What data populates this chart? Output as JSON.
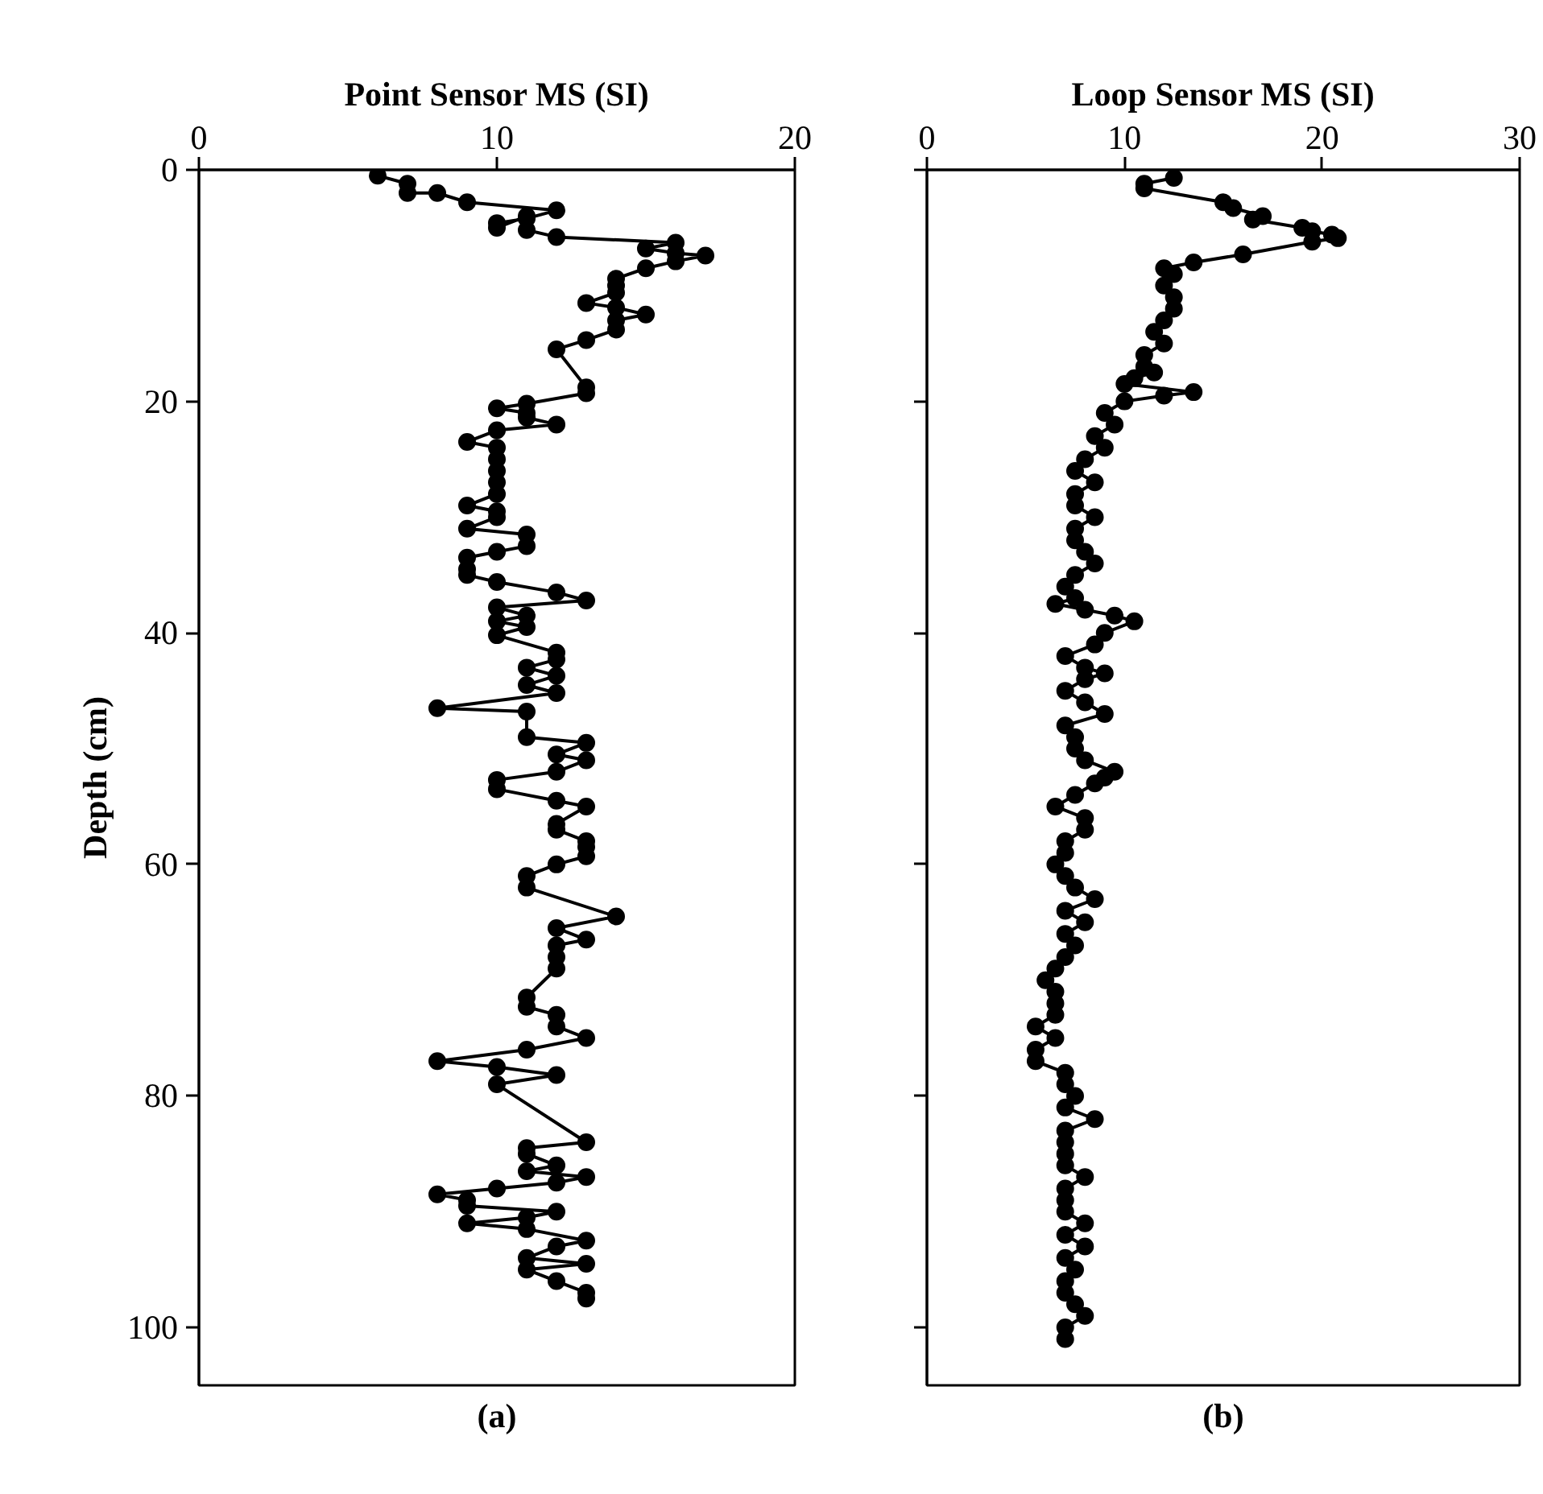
{
  "chart_data": [
    {
      "type": "line",
      "xlabel": "Point Sensor MS (SI)",
      "ylabel": "Depth (cm)",
      "annotations": [
        "(a)"
      ],
      "orientation": "horizontal",
      "marker": "circle",
      "line_style": "solid",
      "xlim": [
        0,
        20
      ],
      "xticks": [
        0,
        10,
        20
      ],
      "ylim": [
        105,
        0
      ],
      "yticks": [
        0,
        20,
        40,
        60,
        80,
        100
      ],
      "series": [
        {
          "color": "#000000",
          "values": [
            6,
            7,
            7,
            8,
            9,
            12,
            11,
            10,
            10,
            11,
            11,
            12,
            16,
            15,
            16,
            17,
            16,
            15,
            14,
            14,
            14,
            13,
            14,
            15,
            14,
            14,
            13,
            12,
            13,
            13,
            11,
            10,
            11,
            11,
            12,
            10,
            9,
            10,
            10,
            10,
            10,
            10,
            9,
            10,
            10,
            9,
            11,
            11,
            10,
            9,
            9,
            9,
            10,
            12,
            13,
            10,
            11,
            10,
            11,
            10,
            12,
            12,
            11,
            12,
            11,
            12,
            8,
            11,
            11,
            13,
            12,
            13,
            12,
            10,
            10,
            12,
            13,
            12,
            12,
            13,
            13,
            13,
            12,
            11,
            11,
            14,
            12,
            13,
            12,
            12,
            12,
            11,
            11,
            12,
            12,
            13,
            11,
            8,
            10,
            12,
            10,
            13,
            11,
            11,
            12,
            11,
            13,
            12,
            10,
            8,
            9,
            9,
            12,
            11,
            9,
            11,
            13,
            12,
            11,
            13,
            11,
            12,
            13,
            13
          ],
          "x": [
            0.5,
            1.2,
            2.0,
            2.0,
            2.8,
            3.5,
            4.2,
            4.6,
            5.0,
            4.0,
            5.2,
            5.8,
            6.3,
            6.8,
            7.2,
            7.4,
            7.9,
            8.5,
            9.4,
            10.0,
            10.6,
            11.5,
            11.9,
            12.5,
            13.0,
            13.8,
            14.7,
            15.5,
            18.8,
            19.3,
            20.2,
            20.6,
            21.0,
            21.4,
            22.0,
            22.5,
            23.5,
            24.0,
            25.0,
            26.0,
            27.0,
            28.0,
            29.0,
            29.5,
            30.0,
            31.0,
            31.5,
            32.5,
            33.0,
            33.5,
            34.5,
            35.0,
            35.6,
            36.5,
            37.2,
            37.8,
            38.5,
            39.0,
            39.5,
            40.2,
            41.7,
            42.3,
            43.0,
            43.7,
            44.5,
            45.2,
            46.5,
            46.8,
            49.0,
            49.5,
            50.5,
            51.0,
            52.0,
            52.7,
            53.5,
            54.5,
            55.0,
            56.5,
            57.0,
            58.0,
            58.5,
            59.3,
            60.0,
            61.0,
            62.0,
            64.5,
            65.5,
            66.5,
            67.0,
            68.0,
            69.0,
            71.5,
            72.3,
            73.0,
            74.0,
            75.0,
            76.0,
            77.0,
            77.5,
            78.2,
            79.0,
            84.0,
            84.5,
            85.0,
            86.0,
            86.5,
            87.0,
            87.5,
            88.0,
            88.5,
            89.0,
            89.5,
            90.0,
            90.5,
            91.0,
            91.5,
            92.5,
            93.0,
            94.0,
            94.5,
            95.0,
            96.0,
            97.0,
            97.5
          ]
        }
      ]
    },
    {
      "type": "line",
      "xlabel": "Loop Sensor MS (SI)",
      "annotations": [
        "(b)"
      ],
      "orientation": "horizontal",
      "marker": "circle",
      "line_style": "solid",
      "tick_labels": "x",
      "xlim": [
        0,
        30
      ],
      "xticks": [
        0,
        10,
        20,
        30
      ],
      "ylim": [
        105,
        0
      ],
      "yticks": [
        0,
        20,
        40,
        60,
        80,
        100
      ],
      "series": [
        {
          "color": "#000000",
          "values": [
            12.5,
            11,
            11,
            15,
            15.5,
            17,
            16.5,
            19,
            19.5,
            20.5,
            20.8,
            19.5,
            16,
            13.5,
            12,
            12.5,
            12,
            12.5,
            12.5,
            12,
            11.5,
            12,
            11,
            11,
            11.5,
            10.5,
            10,
            13.5,
            12,
            10,
            9,
            9.5,
            8.5,
            9,
            8,
            7.5,
            8.5,
            7.5,
            7.5,
            8.5,
            7.5,
            7.5,
            8,
            8.5,
            7.5,
            7,
            7.5,
            6.5,
            8,
            9.5,
            10.5,
            9,
            8.5,
            7,
            8,
            9,
            8,
            7,
            8,
            9,
            7,
            7.5,
            7.5,
            8,
            9.5,
            9,
            8.5,
            7.5,
            6.5,
            8,
            8,
            7,
            7,
            6.5,
            7,
            7.5,
            8.5,
            7,
            8,
            7,
            7.5,
            7,
            6.5,
            6,
            6.5,
            6.5,
            6.5,
            5.5,
            6.5,
            5.5,
            5.5,
            7,
            7,
            7.5,
            7,
            8.5,
            7,
            7,
            7,
            7,
            8,
            7,
            7,
            7,
            8,
            7,
            8,
            7,
            7.5,
            7,
            7,
            7.5,
            8,
            7,
            7
          ],
          "x": [
            0.7,
            1.2,
            1.6,
            2.8,
            3.3,
            4.0,
            4.3,
            5.0,
            5.3,
            5.6,
            5.9,
            6.2,
            7.3,
            8.0,
            8.5,
            9.0,
            10.0,
            11.0,
            12.0,
            13.0,
            14.0,
            15.0,
            16.0,
            17.0,
            17.5,
            18.0,
            18.5,
            19.2,
            19.5,
            20.0,
            21.0,
            22.0,
            23.0,
            24.0,
            25.0,
            26.0,
            27.0,
            28.0,
            29.0,
            30.0,
            31.0,
            32.0,
            33.0,
            34.0,
            35.0,
            36.0,
            37.0,
            37.5,
            38.0,
            38.5,
            39.0,
            40.0,
            41.0,
            42.0,
            43.0,
            43.5,
            44.0,
            45.0,
            46.0,
            47.0,
            48.0,
            49.0,
            50.0,
            51.0,
            52.0,
            52.5,
            53.0,
            54.0,
            55.0,
            56.0,
            57.0,
            58.0,
            59.0,
            60.0,
            61.0,
            62.0,
            63.0,
            64.0,
            65.0,
            66.0,
            67.0,
            68.0,
            69.0,
            70.0,
            71.0,
            72.0,
            73.0,
            74.0,
            75.0,
            76.0,
            77.0,
            78.0,
            79.0,
            80.0,
            81.0,
            82.0,
            83.0,
            84.0,
            85.0,
            86.0,
            87.0,
            88.0,
            89.0,
            90.0,
            91.0,
            92.0,
            93.0,
            94.0,
            95.0,
            96.0,
            97.0,
            98.0,
            99.0,
            100.0,
            101.0
          ]
        }
      ]
    }
  ]
}
